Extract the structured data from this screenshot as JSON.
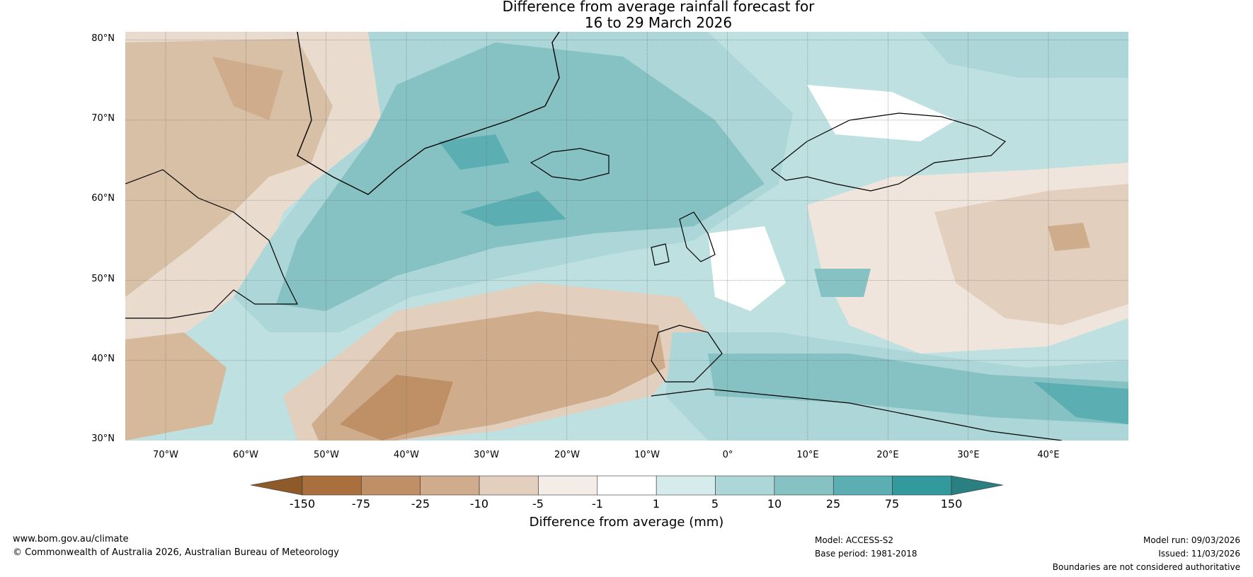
{
  "title": {
    "line1": "Difference from average rainfall forecast for",
    "line2": "16 to 29 March 2026"
  },
  "map": {
    "lat_labels": [
      "80°N",
      "70°N",
      "60°N",
      "50°N",
      "40°N",
      "30°N"
    ],
    "lon_labels": [
      "70°W",
      "60°W",
      "50°W",
      "40°W",
      "30°W",
      "20°W",
      "10°W",
      "0°",
      "10°E",
      "20°E",
      "30°E",
      "40°E"
    ],
    "ocean_tint": "#86c2c3",
    "graticule": true
  },
  "colorbar": {
    "ticks": [
      "-150",
      "-75",
      "-25",
      "-10",
      "-5",
      "-1",
      "1",
      "5",
      "10",
      "25",
      "75",
      "150"
    ],
    "colors": [
      "#8f5a2a",
      "#a9703d",
      "#bf9065",
      "#cfac8b",
      "#e2cfbd",
      "#f4ece6",
      "#ffffff",
      "#d6ebeb",
      "#acd6d7",
      "#86c2c3",
      "#5baeb1",
      "#329a9d",
      "#2a7f80"
    ],
    "label": "Difference from average (mm)"
  },
  "footer": {
    "website": "www.bom.gov.au/climate",
    "copyright": "© Commonwealth of Australia 2026, Australian Bureau of Meteorology",
    "model": "Model: ACCESS-S2",
    "base_period": "Base period: 1981-2018",
    "model_run": "Model run: 09/03/2026",
    "issued": "Issued: 11/03/2026",
    "disclaimer": "Boundaries are not considered authoritative"
  }
}
